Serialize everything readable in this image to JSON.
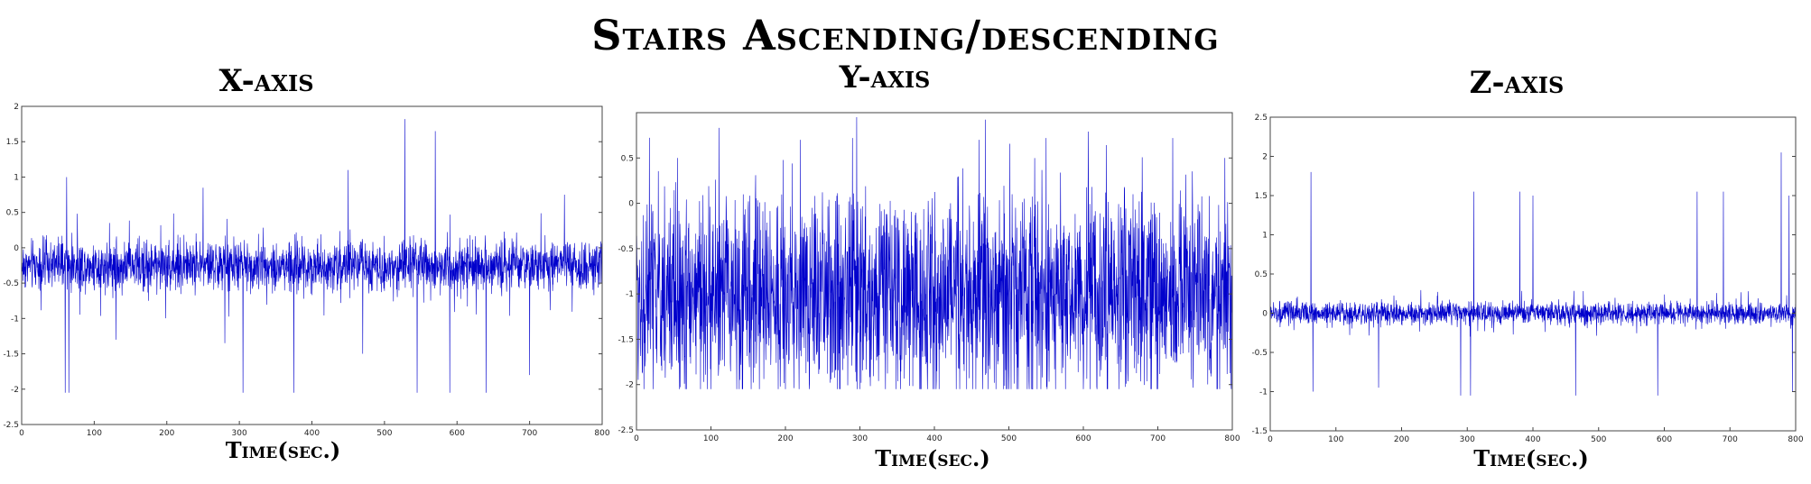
{
  "title": "Stairs Ascending/descending",
  "colors": {
    "series": "#0000cc",
    "axis": "#444444",
    "background": "#ffffff"
  },
  "chart_data": [
    {
      "type": "line",
      "panel_title": "X-axis",
      "xlabel": "Time(sec.)",
      "ylabel": "",
      "xlim": [
        0,
        800
      ],
      "ylim": [
        -2.5,
        2
      ],
      "x_ticks": [
        0,
        100,
        200,
        300,
        400,
        500,
        600,
        700,
        800
      ],
      "x_tick_labels": [
        "0",
        "100",
        "200",
        "300",
        "400",
        "500",
        "600",
        "700",
        "800"
      ],
      "y_ticks": [
        -2.5,
        -2,
        -1.5,
        -1,
        -0.5,
        0,
        0.5,
        1,
        1.5,
        2
      ],
      "y_tick_labels": [
        "-2.5",
        "-2",
        "-1.5",
        "-1",
        "-0.5",
        "0",
        "0.5",
        "1",
        "1.5",
        "2"
      ],
      "grid": false,
      "series": [
        {
          "approximate": true,
          "baseline": -0.25,
          "spread": 0.3,
          "peaks": [
            [
              62,
              1.0
            ],
            [
              250,
              0.85
            ],
            [
              450,
              1.1
            ],
            [
              528,
              1.82
            ],
            [
              570,
              1.65
            ],
            [
              590,
              1.3
            ],
            [
              640,
              1.1
            ],
            [
              748,
              0.75
            ]
          ],
          "troughs": [
            [
              60,
              -2.05
            ],
            [
              65,
              -2.05
            ],
            [
              130,
              -1.3
            ],
            [
              280,
              -1.35
            ],
            [
              305,
              -2.05
            ],
            [
              375,
              -2.05
            ],
            [
              470,
              -1.5
            ],
            [
              545,
              -2.05
            ],
            [
              590,
              -2.05
            ],
            [
              640,
              -2.05
            ],
            [
              700,
              -1.8
            ]
          ]
        }
      ]
    },
    {
      "type": "line",
      "panel_title": "Y-axis",
      "xlabel": "Time(sec.)",
      "ylabel": "",
      "xlim": [
        0,
        800
      ],
      "ylim": [
        -2.5,
        1
      ],
      "x_ticks": [
        0,
        100,
        200,
        300,
        400,
        500,
        600,
        700,
        800
      ],
      "x_tick_labels": [
        "0",
        "100",
        "200",
        "300",
        "400",
        "500",
        "600",
        "700",
        "800"
      ],
      "y_ticks": [
        -2.5,
        -2,
        -1.5,
        -1,
        -0.5,
        0,
        0.5
      ],
      "y_tick_labels": [
        "-2.5",
        "-2",
        "-1.5",
        "-1",
        "-0.5",
        "0",
        "0.5"
      ],
      "grid": false,
      "series": [
        {
          "approximate": true,
          "baseline": -1.0,
          "spread": 0.9,
          "peaks": [
            [
              55,
              0.5
            ],
            [
              220,
              0.7
            ],
            [
              290,
              0.72
            ],
            [
              460,
              0.7
            ],
            [
              550,
              0.72
            ],
            [
              720,
              0.72
            ],
            [
              790,
              0.5
            ]
          ],
          "troughs": [
            [
              10,
              -2.05
            ],
            [
              100,
              -2.05
            ],
            [
              200,
              -2.05
            ],
            [
              300,
              -2.05
            ],
            [
              400,
              -2.05
            ],
            [
              500,
              -2.05
            ],
            [
              600,
              -2.05
            ],
            [
              700,
              -2.05
            ],
            [
              780,
              -2.05
            ]
          ]
        }
      ]
    },
    {
      "type": "line",
      "panel_title": "Z-axis",
      "xlabel": "Time(sec.)",
      "ylabel": "",
      "xlim": [
        0,
        800
      ],
      "ylim": [
        -1.5,
        2.5
      ],
      "x_ticks": [
        0,
        100,
        200,
        300,
        400,
        500,
        600,
        700,
        800
      ],
      "x_tick_labels": [
        "0",
        "100",
        "200",
        "300",
        "400",
        "500",
        "600",
        "700",
        "800"
      ],
      "y_ticks": [
        -1.5,
        -1,
        -0.5,
        0,
        0.5,
        1,
        1.5,
        2,
        2.5
      ],
      "y_tick_labels": [
        "-1.5",
        "-1",
        "-0.5",
        "0",
        "0.5",
        "1",
        "1.5",
        "2",
        "2.5"
      ],
      "grid": false,
      "series": [
        {
          "approximate": true,
          "baseline": 0.0,
          "spread": 0.12,
          "peaks": [
            [
              62,
              1.8
            ],
            [
              310,
              1.55
            ],
            [
              380,
              1.55
            ],
            [
              400,
              1.5
            ],
            [
              590,
              2.05
            ],
            [
              650,
              1.55
            ],
            [
              690,
              1.55
            ],
            [
              778,
              2.05
            ],
            [
              790,
              1.5
            ]
          ],
          "troughs": [
            [
              65,
              -1.0
            ],
            [
              165,
              -0.95
            ],
            [
              290,
              -1.3
            ],
            [
              305,
              -1.1
            ],
            [
              465,
              -1.25
            ],
            [
              590,
              -1.35
            ],
            [
              795,
              -1.0
            ]
          ]
        }
      ]
    }
  ]
}
